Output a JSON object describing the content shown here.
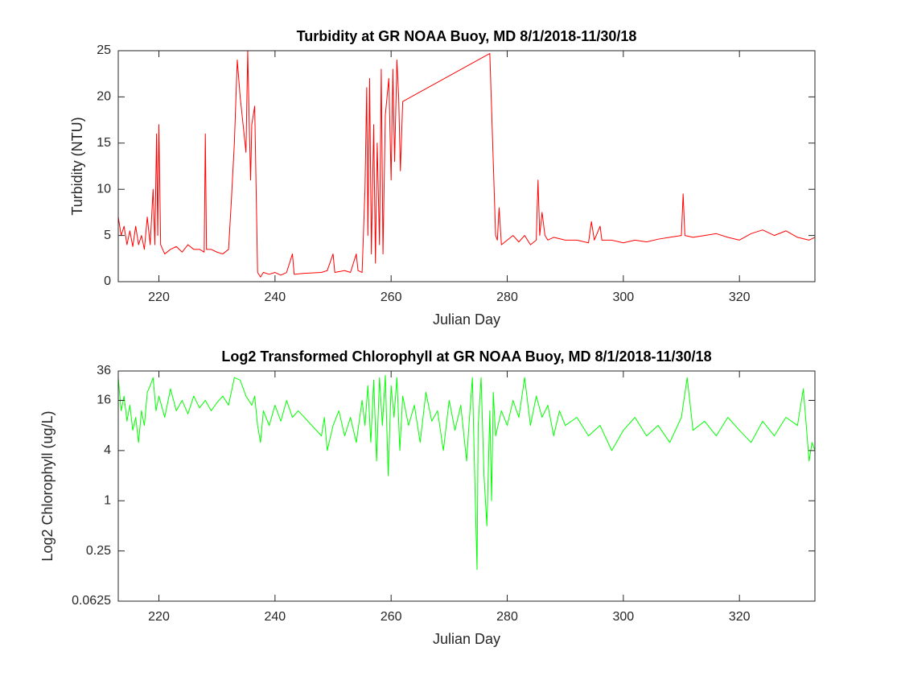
{
  "chart_data": [
    {
      "type": "line",
      "title": "Turbidity at GR NOAA Buoy, MD 8/1/2018-11/30/18",
      "xlabel": "Julian Day",
      "ylabel": "Turbidity (NTU)",
      "color": "#ff0000",
      "xlim": [
        213,
        333
      ],
      "xticks": [
        220,
        240,
        260,
        280,
        300,
        320
      ],
      "ylim": [
        0,
        25
      ],
      "yticks": [
        0,
        5,
        10,
        15,
        20,
        25
      ],
      "x": [
        213,
        213.5,
        214,
        214.5,
        215,
        215.5,
        216,
        216.5,
        217,
        217.5,
        218,
        218.5,
        219,
        219.3,
        219.6,
        219.8,
        220,
        220.3,
        221,
        222,
        223,
        224,
        225,
        226,
        227,
        227.8,
        228,
        228.2,
        229,
        230,
        231,
        232,
        232.5,
        233,
        233.5,
        234,
        234.5,
        235,
        235.3,
        235.6,
        235.8,
        236,
        236.5,
        237,
        237.5,
        238,
        239,
        240,
        241,
        242,
        243,
        243.3,
        245,
        248,
        249,
        250,
        250.3,
        252,
        253,
        254,
        254.3,
        255,
        255.5,
        255.8,
        256,
        256.3,
        256.6,
        257,
        257.3,
        257.6,
        258,
        258.3,
        258.6,
        259,
        259.3,
        259.6,
        260,
        260.3,
        260.6,
        261,
        261.3,
        261.6,
        262,
        277,
        278,
        278.3,
        278.6,
        279,
        280,
        281,
        282,
        283,
        284,
        285,
        285.3,
        285.6,
        286,
        286.5,
        287,
        288,
        290,
        292,
        294,
        294.5,
        295,
        296,
        296.3,
        298,
        300,
        302,
        304,
        306,
        308,
        310,
        310.3,
        310.6,
        312,
        314,
        316,
        318,
        320,
        322,
        324,
        326,
        328,
        330,
        332,
        333
      ],
      "values": [
        7,
        5,
        6,
        4,
        5.5,
        3.8,
        6,
        4,
        5,
        3.5,
        7,
        4,
        10,
        4,
        16,
        5,
        17,
        4,
        3,
        3.5,
        3.8,
        3.2,
        4,
        3.5,
        3.5,
        3.2,
        16,
        3.5,
        3.5,
        3.2,
        3,
        3.5,
        9,
        15,
        24,
        20,
        17,
        14,
        25,
        16,
        11,
        17,
        19,
        1,
        0.5,
        1,
        0.8,
        1,
        0.7,
        1,
        3,
        0.8,
        0.9,
        1,
        1.2,
        3,
        1,
        1.2,
        1,
        3,
        1.2,
        1,
        10,
        21,
        5,
        22,
        3,
        17,
        2,
        15,
        4,
        23,
        3,
        18,
        20,
        22,
        11,
        23,
        13,
        24,
        20,
        12,
        19.5,
        24.7,
        5,
        4.5,
        8,
        4,
        4.5,
        5,
        4.3,
        5,
        4,
        4.5,
        11,
        5,
        7.5,
        5,
        4.5,
        4.8,
        4.5,
        4.5,
        4.2,
        6.5,
        4.5,
        6,
        4.5,
        4.5,
        4.2,
        4.5,
        4.3,
        4.6,
        4.8,
        5,
        9.5,
        5,
        4.8,
        5,
        5.2,
        4.8,
        4.5,
        5.2,
        5.6,
        5,
        5.5,
        4.8,
        4.5,
        4.8
      ]
    },
    {
      "type": "line",
      "title": "Log2 Transformed Chlorophyll at GR NOAA Buoy, MD 8/1/2018-11/30/18",
      "xlabel": "Julian Day",
      "ylabel": "Log2 Chlorophyll (ug/L)",
      "color": "#00ff00",
      "log_base": 2,
      "xlim": [
        213,
        333
      ],
      "xticks": [
        220,
        240,
        260,
        280,
        300,
        320
      ],
      "ylim": [
        0.0625,
        36
      ],
      "yticks": [
        0.0625,
        0.25,
        1,
        4,
        16,
        36
      ],
      "x": [
        213,
        213.5,
        214,
        214.5,
        215,
        215.5,
        216,
        216.5,
        217,
        217.5,
        218,
        218.5,
        219,
        219.5,
        220,
        221,
        222,
        223,
        224,
        225,
        226,
        227,
        228,
        229,
        230,
        231,
        232,
        233,
        234,
        235,
        236,
        236.5,
        237,
        237.5,
        238,
        239,
        240,
        241,
        242,
        243,
        244,
        248,
        248.5,
        249,
        250,
        251,
        252,
        253,
        254,
        255,
        255.5,
        256,
        256.5,
        257,
        257.5,
        258,
        258.5,
        259,
        259.5,
        260,
        260.5,
        261,
        261.5,
        262,
        263,
        264,
        265,
        266,
        267,
        268,
        269,
        270,
        271,
        272,
        273,
        273.5,
        274,
        274.5,
        274.8,
        275,
        275.5,
        276,
        276.5,
        277,
        277.3,
        277.6,
        278,
        279,
        280,
        281,
        282,
        283,
        284,
        285,
        286,
        287,
        288,
        289,
        290,
        292,
        294,
        296,
        298,
        300,
        302,
        304,
        306,
        308,
        310,
        311,
        312,
        314,
        316,
        318,
        320,
        322,
        324,
        326,
        328,
        330,
        331,
        332,
        332.5,
        333
      ],
      "values": [
        30,
        12,
        18,
        9,
        14,
        7,
        10,
        5,
        12,
        8,
        20,
        24,
        30,
        12,
        18,
        10,
        22,
        12,
        16,
        11,
        18,
        13,
        16,
        12,
        15,
        18,
        14,
        30,
        28,
        18,
        14,
        18,
        8,
        5,
        12,
        8,
        14,
        9,
        16,
        10,
        12,
        6,
        10,
        4,
        8,
        12,
        6,
        10,
        5,
        16,
        8,
        24,
        5,
        28,
        3,
        30,
        8,
        32,
        2,
        24,
        10,
        30,
        4,
        18,
        8,
        14,
        5,
        20,
        9,
        12,
        4,
        16,
        7,
        14,
        3,
        10,
        30,
        1,
        0.15,
        8,
        30,
        2,
        0.5,
        12,
        1,
        20,
        6,
        12,
        8,
        16,
        10,
        30,
        8,
        18,
        10,
        14,
        6,
        12,
        8,
        10,
        6,
        8,
        4,
        7,
        10,
        6,
        8,
        5,
        10,
        30,
        7,
        9,
        6,
        10,
        7,
        5,
        9,
        6,
        10,
        8,
        22,
        3,
        5,
        4
      ]
    }
  ]
}
